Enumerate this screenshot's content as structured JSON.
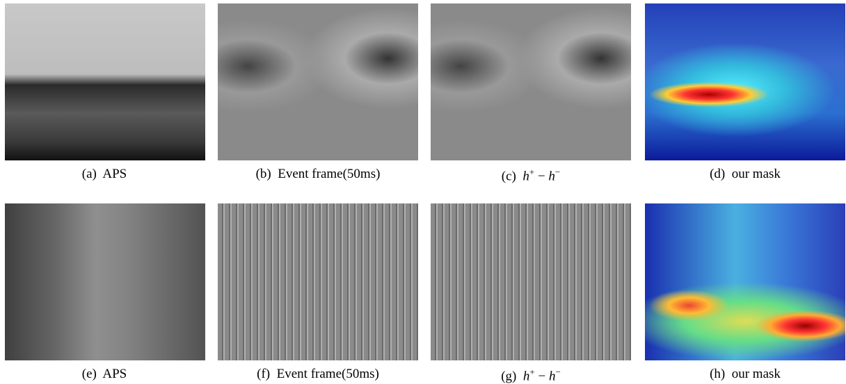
{
  "figure": {
    "rows": [
      [
        {
          "label": "(a)",
          "text": "APS"
        },
        {
          "label": "(b)",
          "text": "Event frame(50ms)"
        },
        {
          "label": "(c)",
          "math": [
            "h",
            "+",
            "−",
            "h",
            "−"
          ]
        },
        {
          "label": "(d)",
          "text": "our mask"
        }
      ],
      [
        {
          "label": "(e)",
          "text": "APS"
        },
        {
          "label": "(f)",
          "text": "Event frame(50ms)"
        },
        {
          "label": "(g)",
          "math": [
            "h",
            "+",
            "−",
            "h",
            "−"
          ]
        },
        {
          "label": "(h)",
          "text": "our mask"
        }
      ]
    ]
  }
}
